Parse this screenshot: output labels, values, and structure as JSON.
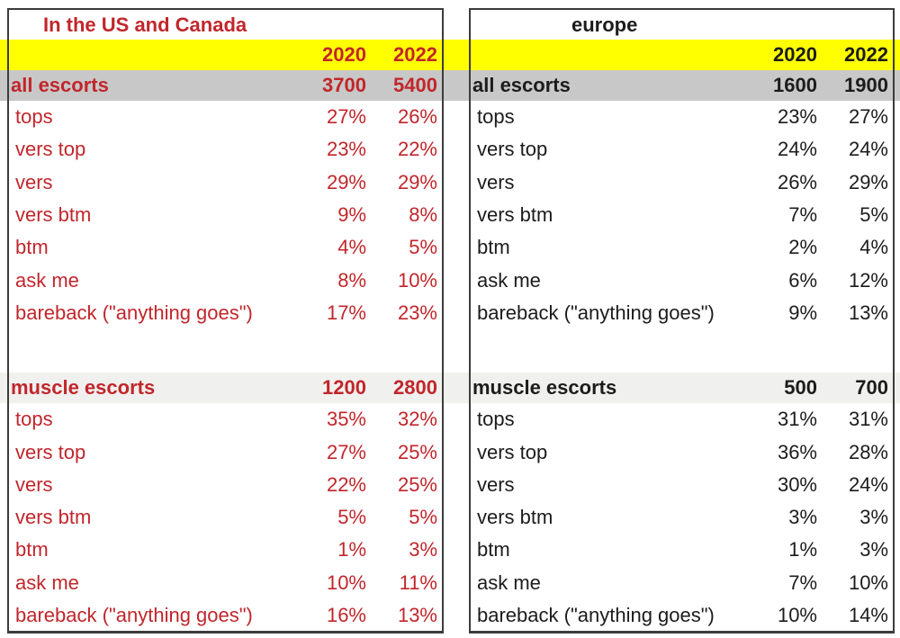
{
  "colors": {
    "years_band": "#ffff00",
    "all_escorts_band": "#c8c8c8",
    "muscle_escorts_band": "#f0f0ee",
    "us_canada_text": "#c1262b",
    "europe_text": "#1c1c1c",
    "table_border": "#3c3c3c"
  },
  "chart_data": [
    {
      "type": "table",
      "title": "In the US and Canada",
      "text_color": "#c1262b",
      "columns": [
        "",
        "2020",
        "2022"
      ],
      "sections": [
        {
          "header": {
            "label": "all escorts",
            "values": [
              "3700",
              "5400"
            ]
          },
          "rows": [
            {
              "label": "tops",
              "values": [
                "27%",
                "26%"
              ]
            },
            {
              "label": "vers top",
              "values": [
                "23%",
                "22%"
              ]
            },
            {
              "label": "vers",
              "values": [
                "29%",
                "29%"
              ]
            },
            {
              "label": "vers btm",
              "values": [
                "9%",
                "8%"
              ]
            },
            {
              "label": "btm",
              "values": [
                "4%",
                "5%"
              ]
            },
            {
              "label": "ask me",
              "values": [
                "8%",
                "10%"
              ]
            },
            {
              "label": "bareback (\"anything goes\")",
              "values": [
                "17%",
                "23%"
              ]
            }
          ]
        },
        {
          "header": {
            "label": "muscle escorts",
            "values": [
              "1200",
              "2800"
            ]
          },
          "rows": [
            {
              "label": "tops",
              "values": [
                "35%",
                "32%"
              ]
            },
            {
              "label": "vers top",
              "values": [
                "27%",
                "25%"
              ]
            },
            {
              "label": "vers",
              "values": [
                "22%",
                "25%"
              ]
            },
            {
              "label": "vers btm",
              "values": [
                "5%",
                "5%"
              ]
            },
            {
              "label": "btm",
              "values": [
                "1%",
                "3%"
              ]
            },
            {
              "label": "ask me",
              "values": [
                "10%",
                "11%"
              ]
            },
            {
              "label": "bareback (\"anything goes\")",
              "values": [
                "16%",
                "13%"
              ]
            }
          ]
        }
      ]
    },
    {
      "type": "table",
      "title": "europe",
      "text_color": "#1c1c1c",
      "columns": [
        "",
        "2020",
        "2022"
      ],
      "sections": [
        {
          "header": {
            "label": "all escorts",
            "values": [
              "1600",
              "1900"
            ]
          },
          "rows": [
            {
              "label": "tops",
              "values": [
                "23%",
                "27%"
              ]
            },
            {
              "label": "vers top",
              "values": [
                "24%",
                "24%"
              ]
            },
            {
              "label": "vers",
              "values": [
                "26%",
                "29%"
              ]
            },
            {
              "label": "vers btm",
              "values": [
                "7%",
                "5%"
              ]
            },
            {
              "label": "btm",
              "values": [
                "2%",
                "4%"
              ]
            },
            {
              "label": "ask me",
              "values": [
                "6%",
                "12%"
              ]
            },
            {
              "label": "bareback (\"anything goes\")",
              "values": [
                "9%",
                "13%"
              ]
            }
          ]
        },
        {
          "header": {
            "label": "muscle escorts",
            "values": [
              "500",
              "700"
            ]
          },
          "rows": [
            {
              "label": "tops",
              "values": [
                "31%",
                "31%"
              ]
            },
            {
              "label": "vers top",
              "values": [
                "36%",
                "28%"
              ]
            },
            {
              "label": "vers",
              "values": [
                "30%",
                "24%"
              ]
            },
            {
              "label": "vers btm",
              "values": [
                "3%",
                "3%"
              ]
            },
            {
              "label": "btm",
              "values": [
                "1%",
                "3%"
              ]
            },
            {
              "label": "ask me",
              "values": [
                "7%",
                "10%"
              ]
            },
            {
              "label": "bareback (\"anything goes\")",
              "values": [
                "10%",
                "14%"
              ]
            }
          ]
        }
      ]
    }
  ]
}
